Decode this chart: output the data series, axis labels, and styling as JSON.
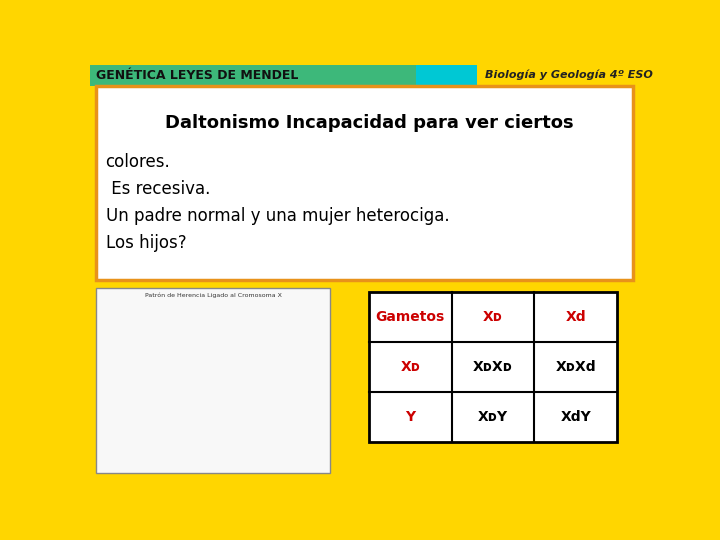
{
  "header_left_text": "GENÉTICA LEYES DE MENDEL",
  "header_left_color": "#3db87a",
  "header_mid_color": "#00c8d4",
  "header_right_color": "#ffd600",
  "header_right_text": "Biología y Geología 4º ESO",
  "bg_color": "#ffd600",
  "content_bg": "#ffffff",
  "content_border": "#e8921a",
  "title_line": "Daltonismo Incapacidad para ver ciertos",
  "body_lines": [
    "colores.",
    " Es recesiva.",
    "Un padre normal y una mujer heterociga.",
    "Los hijos?"
  ],
  "table_headers": [
    "Gametos",
    "Xᴅ",
    "Xd"
  ],
  "table_row1": [
    "Xᴅ",
    "XᴅXᴅ",
    "XᴅXd"
  ],
  "table_row2": [
    "Y",
    "XᴅY",
    "XdY"
  ],
  "table_header_color": "#cc0000",
  "table_body_col0_color": "#cc0000",
  "table_text_color": "#000000"
}
